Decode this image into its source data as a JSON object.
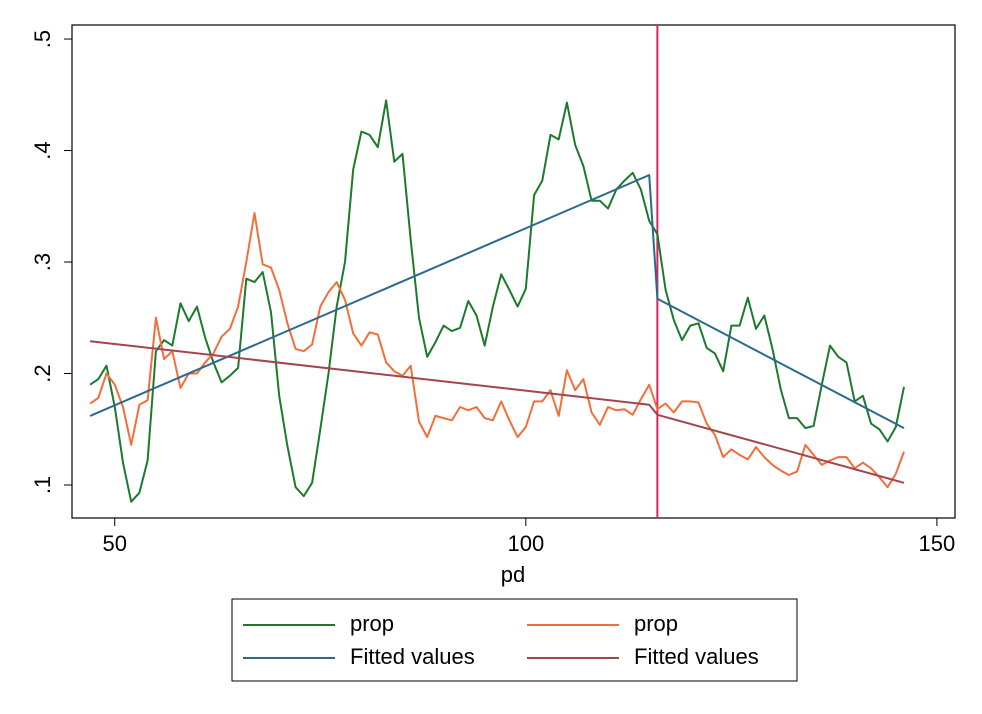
{
  "chart_data": {
    "type": "line",
    "xlabel": "pd",
    "xlim": [
      44.8,
      152.2
    ],
    "ylim": [
      0.0704,
      0.5126
    ],
    "xticks": [
      50,
      100,
      150
    ],
    "yticks": [
      {
        "value": 0.1,
        "label": ".1"
      },
      {
        "value": 0.2,
        "label": ".2"
      },
      {
        "value": 0.3,
        "label": ".3"
      },
      {
        "value": 0.4,
        "label": ".4"
      },
      {
        "value": 0.5,
        "label": ".5"
      }
    ],
    "xline": {
      "value": 116,
      "color": "#d6245f"
    },
    "x": [
      47,
      48,
      49,
      50,
      51,
      52,
      53,
      54,
      55,
      56,
      57,
      58,
      59,
      60,
      61,
      62,
      63,
      64,
      65,
      66,
      67,
      68,
      69,
      70,
      71,
      72,
      73,
      74,
      75,
      76,
      77,
      78,
      79,
      80,
      81,
      82,
      83,
      84,
      85,
      86,
      87,
      88,
      89,
      90,
      91,
      92,
      93,
      94,
      95,
      96,
      97,
      98,
      99,
      100,
      101,
      102,
      103,
      104,
      105,
      106,
      107,
      108,
      109,
      110,
      111,
      112,
      113,
      114,
      115,
      116,
      117,
      118,
      119,
      120,
      121,
      122,
      123,
      124,
      125,
      126,
      127,
      128,
      129,
      130,
      131,
      132,
      133,
      134,
      135,
      136,
      137,
      138,
      139,
      140,
      141,
      142,
      143,
      144,
      145,
      146
    ],
    "series": [
      {
        "name": "prop",
        "color": "#1c7a2c",
        "values": [
          0.19,
          0.195,
          0.207,
          0.17,
          0.12,
          0.085,
          0.093,
          0.122,
          0.22,
          0.23,
          0.225,
          0.263,
          0.247,
          0.26,
          0.232,
          0.21,
          0.192,
          0.198,
          0.205,
          0.285,
          0.282,
          0.291,
          0.255,
          0.18,
          0.135,
          0.098,
          0.09,
          0.102,
          0.15,
          0.2,
          0.26,
          0.3,
          0.383,
          0.417,
          0.414,
          0.403,
          0.445,
          0.39,
          0.397,
          0.32,
          0.25,
          0.215,
          0.228,
          0.243,
          0.238,
          0.241,
          0.265,
          0.252,
          0.225,
          0.26,
          0.289,
          0.275,
          0.26,
          0.276,
          0.36,
          0.373,
          0.414,
          0.41,
          0.443,
          0.405,
          0.386,
          0.355,
          0.355,
          0.348,
          0.365,
          0.373,
          0.38,
          0.365,
          0.337,
          0.325,
          0.275,
          0.248,
          0.23,
          0.243,
          0.245,
          0.223,
          0.218,
          0.202,
          0.243,
          0.243,
          0.268,
          0.24,
          0.252,
          0.222,
          0.186,
          0.16,
          0.16,
          0.151,
          0.153,
          0.19,
          0.225,
          0.215,
          0.21,
          0.175,
          0.18,
          0.155,
          0.15,
          0.139,
          0.152,
          0.188
        ]
      },
      {
        "name": "prop",
        "color": "#f26e3a",
        "values": [
          0.173,
          0.178,
          0.2,
          0.19,
          0.17,
          0.136,
          0.172,
          0.176,
          0.25,
          0.213,
          0.22,
          0.187,
          0.2,
          0.2,
          0.21,
          0.218,
          0.233,
          0.24,
          0.26,
          0.3,
          0.344,
          0.298,
          0.295,
          0.275,
          0.245,
          0.222,
          0.22,
          0.226,
          0.26,
          0.273,
          0.282,
          0.266,
          0.236,
          0.225,
          0.237,
          0.235,
          0.21,
          0.202,
          0.198,
          0.207,
          0.157,
          0.143,
          0.162,
          0.16,
          0.158,
          0.17,
          0.167,
          0.17,
          0.16,
          0.158,
          0.175,
          0.158,
          0.143,
          0.152,
          0.175,
          0.175,
          0.185,
          0.162,
          0.203,
          0.185,
          0.195,
          0.165,
          0.154,
          0.17,
          0.167,
          0.168,
          0.163,
          0.177,
          0.19,
          0.168,
          0.173,
          0.165,
          0.175,
          0.175,
          0.174,
          0.155,
          0.145,
          0.125,
          0.132,
          0.127,
          0.123,
          0.134,
          0.125,
          0.118,
          0.113,
          0.109,
          0.112,
          0.136,
          0.127,
          0.118,
          0.122,
          0.125,
          0.125,
          0.115,
          0.12,
          0.115,
          0.107,
          0.098,
          0.11,
          0.13
        ]
      },
      {
        "name": "Fitted values",
        "color": "#2b6a8c",
        "x": [
          47,
          115,
          116,
          146
        ],
        "values": [
          0.162,
          0.378,
          0.267,
          0.151
        ]
      },
      {
        "name": "Fitted values",
        "color": "#a3454c",
        "x": [
          47,
          115,
          116,
          146
        ],
        "values": [
          0.229,
          0.172,
          0.163,
          0.102
        ]
      }
    ]
  }
}
